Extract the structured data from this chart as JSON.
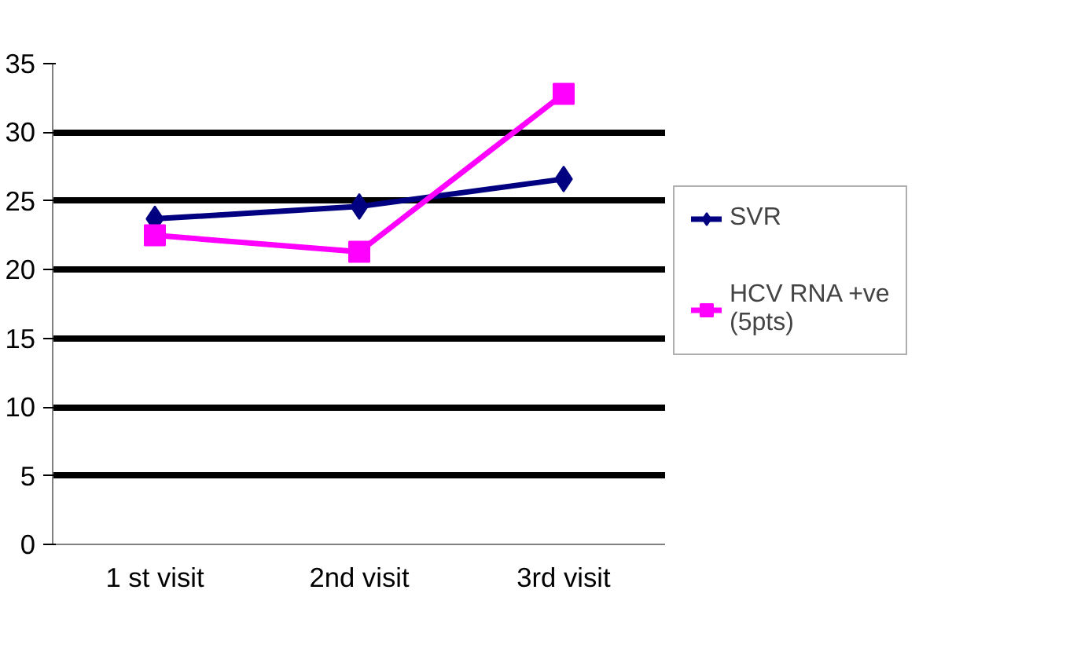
{
  "chart_data": {
    "type": "line",
    "categories": [
      "1 st visit",
      "2nd visit",
      "3rd visit"
    ],
    "series": [
      {
        "name": "SVR",
        "color": "#000080",
        "marker": "diamond",
        "values": [
          23.7,
          24.6,
          26.6
        ]
      },
      {
        "name": "HCV RNA +ve (5pts)",
        "color": "#ff00ff",
        "marker": "square",
        "values": [
          22.5,
          21.3,
          32.8
        ]
      }
    ],
    "ylim": [
      0,
      35
    ],
    "yticks": [
      0,
      5,
      10,
      15,
      20,
      25,
      30,
      35
    ],
    "grid": "y",
    "legend": "right",
    "line_style": "solid"
  }
}
